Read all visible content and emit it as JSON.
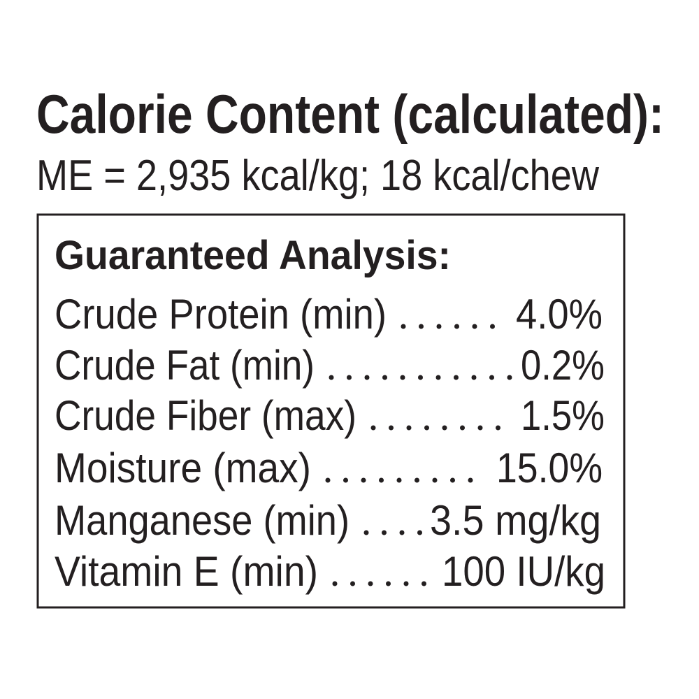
{
  "calorie": {
    "title": "Calorie Content (calculated):",
    "text": "ME = 2,935 kcal/kg; 18 kcal/chew"
  },
  "analysis": {
    "title": "Guaranteed Analysis:",
    "rows": [
      {
        "name": "Crude Protein (min)",
        "value": "4.0%"
      },
      {
        "name": "Crude Fat (min)",
        "value": "0.2%"
      },
      {
        "name": "Crude Fiber (max)",
        "value": "1.5%"
      },
      {
        "name": "Moisture (max)",
        "value": "15.0%"
      },
      {
        "name": "Manganese (min)",
        "value": "3.5 mg/kg"
      },
      {
        "name": "Vitamin E (min)",
        "value": "100 IU/kg"
      }
    ]
  }
}
